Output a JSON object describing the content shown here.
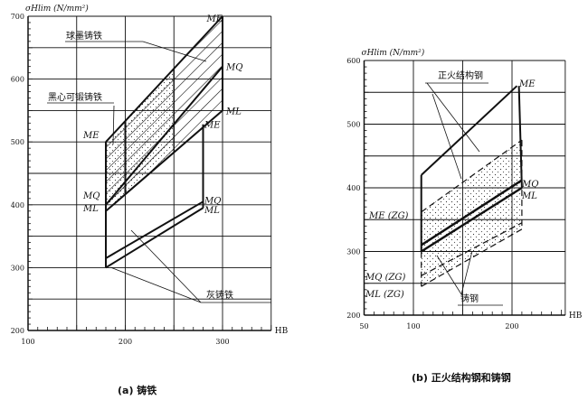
{
  "chart_data": [
    {
      "type": "diagram",
      "ylabel": "σHlim (N/mm²)",
      "xlabel": "HB",
      "xlim": [
        100,
        350
      ],
      "ylim": [
        200,
        700
      ],
      "x_ticks": [
        "100",
        "200",
        "300"
      ],
      "y_ticks": [
        "200",
        "300",
        "400",
        "500",
        "600",
        "700"
      ],
      "grid": true,
      "caption": "(a) 铸铁",
      "regions": [
        {
          "name": "球墨铸铁",
          "ME": [
            [
              180,
              500
            ],
            [
              300,
              700
            ]
          ],
          "MQ": [
            [
              180,
              400
            ],
            [
              300,
              620
            ]
          ],
          "ML": [
            [
              180,
              390
            ],
            [
              300,
              550
            ]
          ],
          "hb_range": [
            200,
            300
          ],
          "fill": "hatch"
        },
        {
          "name": "黑心可锻铸铁",
          "hb_range": [
            180,
            250
          ],
          "fill": "dots"
        },
        {
          "name": "灰铸铁",
          "MQ": [
            [
              180,
              315
            ],
            [
              280,
              405
            ]
          ],
          "ML": [
            [
              180,
              300
            ],
            [
              280,
              395
            ]
          ],
          "ME_top": [
            [
              180,
              500
            ],
            [
              280,
              528
            ]
          ],
          "hb_range": [
            180,
            280
          ]
        }
      ],
      "labels": {
        "nodular": "球墨铸铁",
        "malleable": "黑心可锻铸铁",
        "grey": "灰铸铁",
        "me": "ME",
        "mq": "MQ",
        "ml": "ML"
      }
    },
    {
      "type": "diagram",
      "ylabel": "σHlim (N/mm²)",
      "xlabel": "HB",
      "xlim": [
        50,
        250
      ],
      "ylim": [
        200,
        600
      ],
      "x_ticks": [
        "50",
        "100",
        "200"
      ],
      "y_ticks": [
        "200",
        "300",
        "400",
        "500",
        "600"
      ],
      "grid": true,
      "caption": "(b) 正火结构钢和铸钢",
      "regions": [
        {
          "name": "正火结构钢",
          "ME": [
            [
              108,
              420
            ],
            [
              205,
              560
            ]
          ],
          "MQ": [
            [
              108,
              310
            ],
            [
              210,
              412
            ]
          ],
          "ML": [
            [
              108,
              300
            ],
            [
              210,
              400
            ]
          ],
          "hb_range": [
            108,
            210
          ]
        },
        {
          "name": "铸钢",
          "ME": [
            [
              108,
              362
            ],
            [
              210,
              475
            ]
          ],
          "MQ": [
            [
              108,
              262
            ],
            [
              210,
              345
            ]
          ],
          "ML": [
            [
              108,
              245
            ],
            [
              210,
              335
            ]
          ],
          "hb_range": [
            108,
            210
          ],
          "fill": "dots",
          "dashed": true
        }
      ],
      "labels": {
        "normalized": "正火结构钢",
        "cast": "铸钢",
        "me": "ME",
        "mq": "MQ",
        "ml": "ML",
        "me_zg": "ME (ZG)",
        "mq_zg": "MQ (ZG)",
        "ml_zg": "ML (ZG)"
      }
    }
  ]
}
